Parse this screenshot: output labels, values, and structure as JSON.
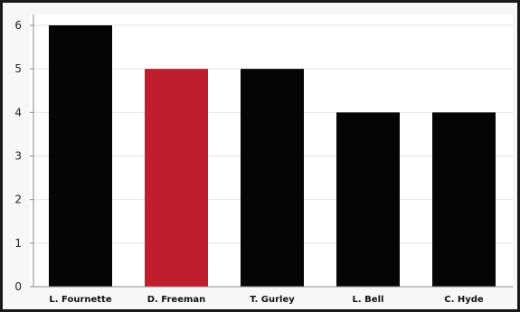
{
  "chart_data": {
    "type": "bar",
    "categories": [
      "L. Fournette",
      "D. Freeman",
      "T. Gurley",
      "L. Bell",
      "C. Hyde"
    ],
    "values": [
      6,
      5,
      5,
      4,
      4
    ],
    "bar_colors": [
      "#050505",
      "#be1e2d",
      "#050505",
      "#050505",
      "#050505"
    ],
    "title": "",
    "xlabel": "",
    "ylabel": "",
    "ylim": [
      0,
      6
    ],
    "yticks": [
      0,
      1,
      2,
      3,
      4,
      5,
      6
    ],
    "grid": true,
    "legend": "none"
  },
  "colors": {
    "highlight": "#be1e2d",
    "default_bar": "#050505",
    "gridline": "#e6e6e6",
    "axis": "#888888"
  }
}
